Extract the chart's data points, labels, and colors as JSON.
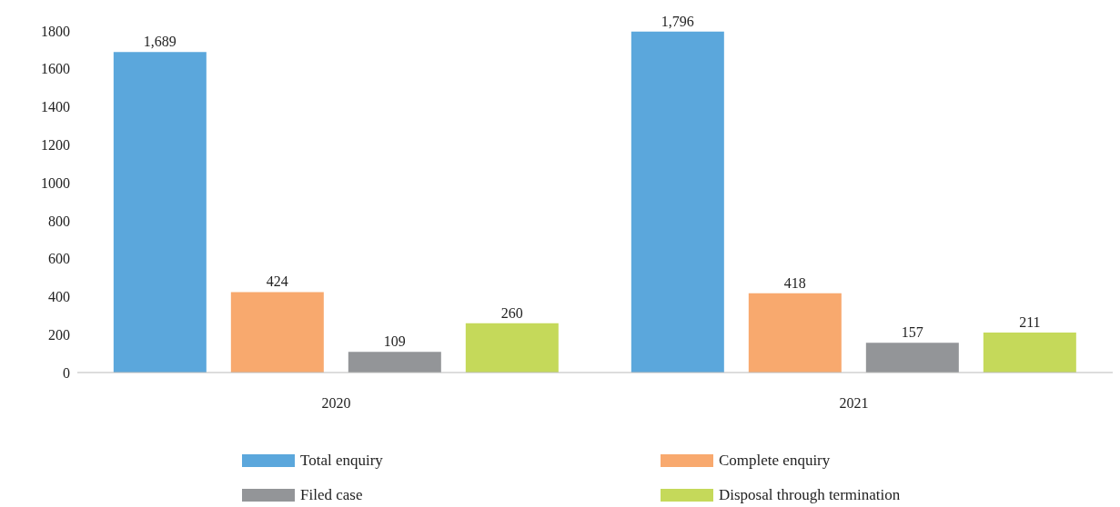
{
  "chart_data": {
    "type": "bar",
    "categories": [
      "2020",
      "2021"
    ],
    "series": [
      {
        "name": "Total enquiry",
        "color": "#5ba7dc",
        "values": [
          1689,
          1796
        ],
        "value_labels": [
          "1,689",
          "1,796"
        ]
      },
      {
        "name": "Complete enquiry",
        "color": "#f8a96e",
        "values": [
          424,
          418
        ],
        "value_labels": [
          "424",
          "418"
        ]
      },
      {
        "name": "Filed case",
        "color": "#939598",
        "values": [
          109,
          157
        ],
        "value_labels": [
          "109",
          "157"
        ]
      },
      {
        "name": "Disposal through termination",
        "color": "#c5d95a",
        "values": [
          260,
          211
        ],
        "value_labels": [
          "260",
          "211"
        ]
      }
    ],
    "ylim": [
      0,
      1800
    ],
    "yticks": [
      0,
      200,
      400,
      600,
      800,
      1000,
      1200,
      1400,
      1600,
      1800
    ],
    "grid": false,
    "legend": "bottom",
    "data_labels": true
  }
}
